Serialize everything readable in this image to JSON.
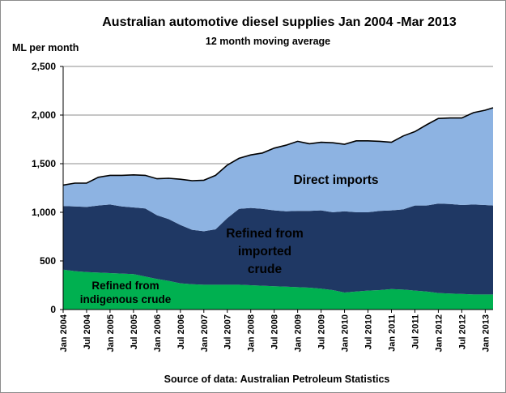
{
  "chart_data": {
    "type": "area",
    "stacked": true,
    "title": "Australian automotive diesel supplies Jan 2004 -Mar 2013",
    "subtitle": "12 month moving average",
    "ylabel": "ML per month",
    "source": "Source of data: Australian Petroleum Statistics",
    "ylim": [
      0,
      2500
    ],
    "yticks": [
      "0",
      "500",
      "1,000",
      "1,500",
      "2,000",
      "2,500"
    ],
    "grid": true,
    "legend": "none",
    "x_start": "2004-01",
    "x_end": "2013-03",
    "xticks": [
      {
        "date": "2004-01",
        "label": "Jan 2004"
      },
      {
        "date": "2004-07",
        "label": "Jul 2004"
      },
      {
        "date": "2005-01",
        "label": "Jan 2005"
      },
      {
        "date": "2005-07",
        "label": "Jul 2005"
      },
      {
        "date": "2006-01",
        "label": "Jan 2006"
      },
      {
        "date": "2006-07",
        "label": "Jul 2006"
      },
      {
        "date": "2007-01",
        "label": "Jan 2007"
      },
      {
        "date": "2007-07",
        "label": "Jul 2007"
      },
      {
        "date": "2008-01",
        "label": "Jan 2008"
      },
      {
        "date": "2008-07",
        "label": "Jul 2008"
      },
      {
        "date": "2009-01",
        "label": "Jan 2009"
      },
      {
        "date": "2009-07",
        "label": "Jul 2009"
      },
      {
        "date": "2010-01",
        "label": "Jan 2010"
      },
      {
        "date": "2010-07",
        "label": "Jul 2010"
      },
      {
        "date": "2011-01",
        "label": "Jan 2011"
      },
      {
        "date": "2011-07",
        "label": "Jul 2011"
      },
      {
        "date": "2012-01",
        "label": "Jan 2012"
      },
      {
        "date": "2012-07",
        "label": "Jul 2012"
      },
      {
        "date": "2013-01",
        "label": "Jan 2013"
      }
    ],
    "x": [
      "2004-01",
      "2004-04",
      "2004-07",
      "2004-10",
      "2005-01",
      "2005-04",
      "2005-07",
      "2005-10",
      "2006-01",
      "2006-04",
      "2006-07",
      "2006-10",
      "2007-01",
      "2007-04",
      "2007-07",
      "2007-10",
      "2008-01",
      "2008-04",
      "2008-07",
      "2008-10",
      "2009-01",
      "2009-04",
      "2009-07",
      "2009-10",
      "2010-01",
      "2010-04",
      "2010-07",
      "2010-10",
      "2011-01",
      "2011-04",
      "2011-07",
      "2011-10",
      "2012-01",
      "2012-04",
      "2012-07",
      "2012-10",
      "2013-01",
      "2013-03"
    ],
    "series": [
      {
        "name": "Refined from indigenous crude",
        "label_lines": [
          "Refined from",
          "indigenous crude"
        ],
        "color": "#00b050",
        "values": [
          410,
          395,
          385,
          380,
          375,
          370,
          365,
          340,
          315,
          295,
          270,
          260,
          255,
          255,
          255,
          255,
          250,
          245,
          240,
          235,
          230,
          225,
          215,
          200,
          175,
          185,
          195,
          200,
          210,
          205,
          195,
          185,
          170,
          165,
          160,
          155,
          155,
          155
        ]
      },
      {
        "name": "Refined from imported crude",
        "label_lines": [
          "Refined from",
          "imported",
          "crude"
        ],
        "color": "#1f3864",
        "values": [
          655,
          665,
          670,
          690,
          705,
          690,
          685,
          700,
          655,
          635,
          600,
          560,
          550,
          570,
          685,
          780,
          795,
          790,
          780,
          775,
          785,
          790,
          805,
          800,
          835,
          815,
          805,
          815,
          810,
          825,
          875,
          885,
          920,
          920,
          915,
          925,
          920,
          915
        ]
      },
      {
        "name": "Direct imports",
        "label_lines": [
          "Direct imports"
        ],
        "color": "#8db3e2",
        "values": [
          215,
          240,
          245,
          290,
          300,
          320,
          335,
          340,
          375,
          420,
          470,
          505,
          525,
          555,
          545,
          520,
          545,
          575,
          640,
          680,
          715,
          690,
          700,
          715,
          690,
          735,
          735,
          715,
          700,
          755,
          760,
          830,
          875,
          885,
          895,
          945,
          975,
          1005
        ]
      }
    ],
    "total_line_color": "#000000"
  }
}
